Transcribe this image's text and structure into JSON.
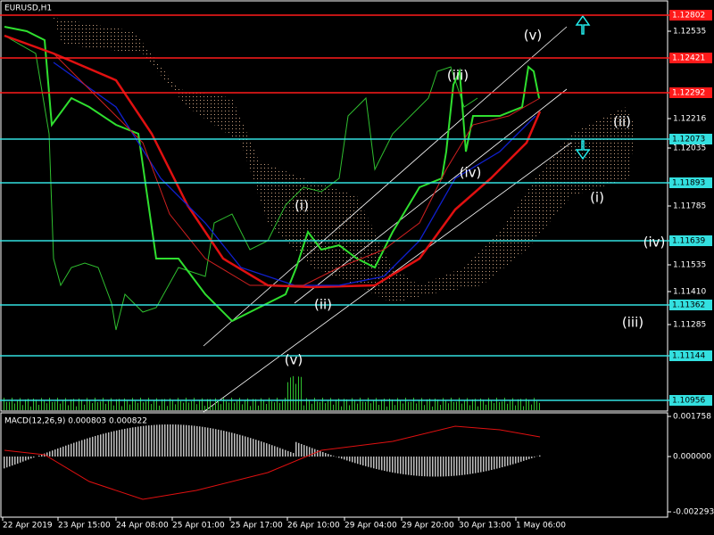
{
  "symbol": "EURUSD,H1",
  "price_scale": [
    "1.12535",
    "1.12216",
    "1.12035",
    "1.11785",
    "1.11535",
    "1.11410",
    "1.11285"
  ],
  "levels": [
    {
      "label": "1.12802",
      "color": "red"
    },
    {
      "label": "1.12421",
      "color": "red"
    },
    {
      "label": "1.12292",
      "color": "red"
    },
    {
      "label": "1.12073",
      "color": "cyan"
    },
    {
      "label": "1.11893",
      "color": "cyan"
    },
    {
      "label": "1.11639",
      "color": "cyan"
    },
    {
      "label": "1.11362",
      "color": "cyan"
    },
    {
      "label": "1.11144",
      "color": "cyan"
    },
    {
      "label": "1.10956",
      "color": "cyan"
    }
  ],
  "waves": [
    "(v)",
    "(iii)",
    "(iv)",
    "(i)",
    "(ii)",
    "(v)",
    "(ii)",
    "(i)",
    "(iv)",
    "(iii)"
  ],
  "indicator": {
    "title": "MACD(12,26,9) 0.000803 0.000822",
    "scale": [
      "0.001758",
      "0.000000",
      "-0.002293"
    ]
  },
  "time_axis": [
    "22 Apr 2019",
    "23 Apr 15:00",
    "24 Apr 08:00",
    "25 Apr 01:00",
    "25 Apr 17:00",
    "26 Apr 10:00",
    "29 Apr 04:00",
    "29 Apr 20:00",
    "30 Apr 13:00",
    "1 May 06:00"
  ]
}
